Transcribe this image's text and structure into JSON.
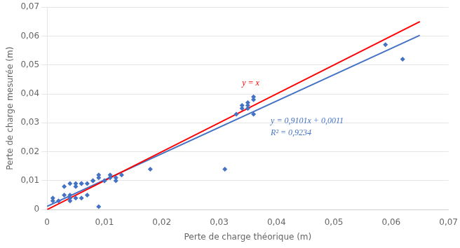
{
  "chart_data": {
    "type": "scatter",
    "x_label": "Perte de charge théorique (m)",
    "y_label": "Perte de charge mesurée (m)",
    "series": [
      {
        "type": "scatter",
        "color": "#4472C4",
        "marker": "diamond",
        "x": [
          0.001,
          0.001,
          0.002,
          0.003,
          0.003,
          0.004,
          0.004,
          0.004,
          0.004,
          0.005,
          0.005,
          0.005,
          0.006,
          0.006,
          0.006,
          0.007,
          0.007,
          0.008,
          0.008,
          0.009,
          0.009,
          0.009,
          0.01,
          0.01,
          0.011,
          0.011,
          0.012,
          0.012,
          0.013,
          0.018,
          0.031,
          0.033,
          0.034,
          0.034,
          0.035,
          0.035,
          0.035,
          0.036,
          0.036,
          0.036,
          0.059,
          0.062
        ],
        "values": [
          0.003,
          0.004,
          0.003,
          0.005,
          0.008,
          0.003,
          0.004,
          0.005,
          0.009,
          0.004,
          0.008,
          0.009,
          0.004,
          0.009,
          0.009,
          0.005,
          0.009,
          0.01,
          0.01,
          0.001,
          0.011,
          0.012,
          0.01,
          0.01,
          0.011,
          0.012,
          0.01,
          0.011,
          0.012,
          0.014,
          0.014,
          0.033,
          0.035,
          0.036,
          0.035,
          0.036,
          0.037,
          0.033,
          0.038,
          0.039,
          0.057,
          0.052
        ]
      },
      {
        "type": "line",
        "color": "#FF0000",
        "x": [
          0,
          0.065
        ],
        "values": [
          0,
          0.065
        ]
      },
      {
        "type": "line",
        "color": "#4472C4",
        "x": [
          0,
          0.065
        ],
        "values": [
          0.0011,
          0.0602565
        ]
      }
    ],
    "annotations": [
      {
        "text": "y = x",
        "x": 0.034,
        "y": 0.043,
        "color": "#FF0000"
      },
      {
        "text": "y = 0,9101x + 0,0011",
        "x": 0.039,
        "y": 0.032,
        "color": "#4472C4"
      },
      {
        "text": "R² = 0,9234",
        "x": 0.039,
        "y": 0.028,
        "color": "#4472C4"
      }
    ],
    "xlim": [
      0,
      0.07
    ],
    "ylim": [
      0,
      0.07
    ],
    "xticks": [
      0,
      {
        "value": 0.01,
        "label": "0,01"
      },
      {
        "value": 0.02,
        "label": "0,02"
      },
      {
        "value": 0.03,
        "label": "0,03"
      },
      {
        "value": 0.04,
        "label": "0,04"
      },
      {
        "value": 0.05,
        "label": "0,05"
      },
      {
        "value": 0.06,
        "label": "0,06"
      },
      {
        "value": 0.07,
        "label": "0,07"
      }
    ],
    "yticks": [
      0,
      {
        "value": 0.01,
        "label": "0,01"
      },
      {
        "value": 0.02,
        "label": "0,02"
      },
      {
        "value": 0.03,
        "label": "0,03"
      },
      {
        "value": 0.04,
        "label": "0,04"
      },
      {
        "value": 0.05,
        "label": "0,05"
      },
      {
        "value": 0.06,
        "label": "0,06"
      },
      {
        "value": 0.07,
        "label": "0,07"
      }
    ],
    "grid": "y"
  }
}
